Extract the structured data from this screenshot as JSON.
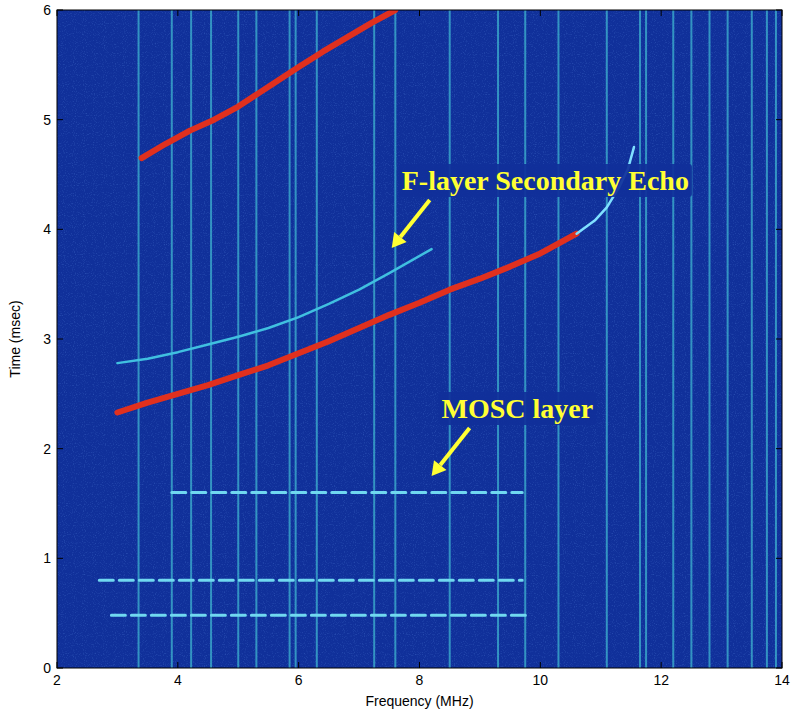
{
  "chart_data": {
    "type": "line",
    "x_label": "Frequency (MHz)",
    "y_label": "Time (msec)",
    "xlim": [
      2,
      14
    ],
    "ylim": [
      0,
      6
    ],
    "xticks": [
      2,
      4,
      6,
      8,
      10,
      12,
      14
    ],
    "yticks": [
      0,
      1,
      2,
      3,
      4,
      5,
      6
    ],
    "color": "#10309a",
    "series": [
      {
        "color": "#e0301e",
        "line_style": "solid",
        "x": [
          3.0,
          3.5,
          4.0,
          4.5,
          5.0,
          5.5,
          6.0,
          6.5,
          7.0,
          7.5,
          8.0,
          8.5,
          9.0,
          9.5,
          10.0,
          10.6
        ],
        "values": [
          2.33,
          2.42,
          2.5,
          2.58,
          2.67,
          2.76,
          2.87,
          2.98,
          3.1,
          3.22,
          3.33,
          3.45,
          3.55,
          3.66,
          3.78,
          3.96
        ]
      },
      {
        "color": "#7fe0ff",
        "line_style": "solid",
        "x": [
          10.6,
          10.9,
          11.1,
          11.3,
          11.45,
          11.55
        ],
        "values": [
          3.96,
          4.08,
          4.2,
          4.38,
          4.55,
          4.75
        ]
      },
      {
        "color": "#40c0e0",
        "line_style": "solid",
        "x": [
          3.0,
          3.5,
          4.0,
          4.5,
          5.0,
          5.5,
          6.0,
          6.5,
          7.0,
          7.5,
          8.2
        ],
        "values": [
          2.78,
          2.82,
          2.88,
          2.95,
          3.02,
          3.1,
          3.2,
          3.32,
          3.45,
          3.6,
          3.82
        ]
      },
      {
        "color": "#e0301e",
        "line_style": "solid",
        "x": [
          3.4,
          3.8,
          4.2,
          4.6,
          5.0,
          5.5,
          6.0,
          6.4,
          6.8,
          7.2,
          7.6
        ],
        "values": [
          4.65,
          4.78,
          4.9,
          5.0,
          5.12,
          5.3,
          5.48,
          5.62,
          5.75,
          5.88,
          6.0
        ]
      },
      {
        "color": "#70d8f0",
        "line_style": "dashed",
        "x": [
          3.9,
          9.7
        ],
        "values": [
          1.6,
          1.6
        ]
      },
      {
        "color": "#70d8f0",
        "line_style": "dashed",
        "x": [
          2.7,
          9.7
        ],
        "values": [
          0.8,
          0.8
        ]
      },
      {
        "color": "#70d8f0",
        "line_style": "dashed",
        "x": [
          2.9,
          9.8
        ],
        "values": [
          0.48,
          0.48
        ]
      }
    ],
    "interference": {
      "color": "#45c8d8",
      "x": [
        3.35,
        3.9,
        4.22,
        4.55,
        5.0,
        5.3,
        5.85,
        5.95,
        6.3,
        7.25,
        7.6,
        8.5,
        9.3,
        9.75,
        10.3,
        11.1,
        11.65,
        11.75,
        12.2,
        12.5,
        12.8,
        13.1,
        13.5,
        13.75,
        13.9
      ]
    },
    "annotations": [
      {
        "text": "F-layer Secondary Echo",
        "x": 7.54,
        "y": 3.83,
        "color": "#ffff33"
      },
      {
        "text": "MOSC layer",
        "x": 8.2,
        "y": 1.75,
        "color": "#ffff33"
      }
    ]
  }
}
